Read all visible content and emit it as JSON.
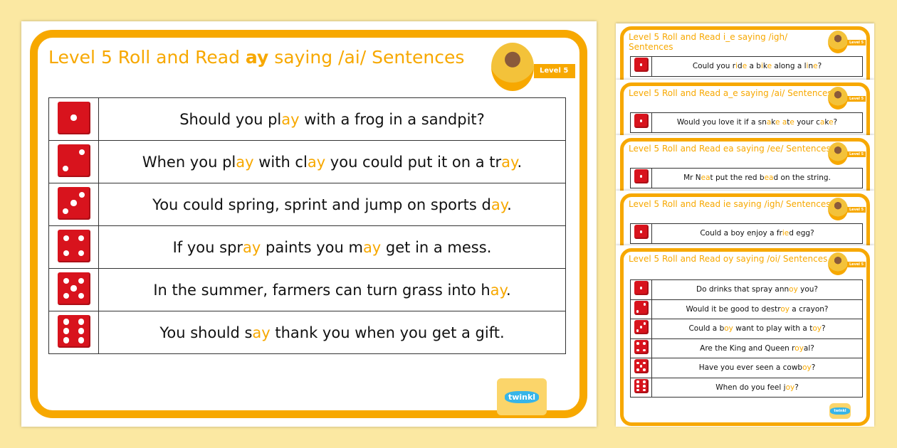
{
  "colors": {
    "accent": "#f7a800",
    "die": "#d8131d",
    "background": "#fbe8a2"
  },
  "main": {
    "title_parts": [
      {
        "t": "Level 5 Roll and Read "
      },
      {
        "t": "ay",
        "b": true
      },
      {
        "t": " saying /ai/ Sentences"
      }
    ],
    "badge": "Level 5",
    "logo": "twinkl",
    "rows": [
      {
        "die": 1,
        "parts": [
          {
            "t": "Should you pl"
          },
          {
            "t": "ay",
            "h": true
          },
          {
            "t": " with a frog in a sandpit?"
          }
        ]
      },
      {
        "die": 2,
        "parts": [
          {
            "t": "When you pl"
          },
          {
            "t": "ay",
            "h": true
          },
          {
            "t": " with cl"
          },
          {
            "t": "ay",
            "h": true
          },
          {
            "t": " you could put it on a tr"
          },
          {
            "t": "ay",
            "h": true
          },
          {
            "t": "."
          }
        ]
      },
      {
        "die": 3,
        "parts": [
          {
            "t": "You could spring, sprint and jump on sports d"
          },
          {
            "t": "ay",
            "h": true
          },
          {
            "t": "."
          }
        ]
      },
      {
        "die": 4,
        "parts": [
          {
            "t": "If you spr"
          },
          {
            "t": "ay",
            "h": true
          },
          {
            "t": " paints you m"
          },
          {
            "t": "ay",
            "h": true
          },
          {
            "t": " get in a mess."
          }
        ]
      },
      {
        "die": 5,
        "parts": [
          {
            "t": "In the summer, farmers can turn grass into h"
          },
          {
            "t": "ay",
            "h": true
          },
          {
            "t": "."
          }
        ]
      },
      {
        "die": 6,
        "parts": [
          {
            "t": "You should s"
          },
          {
            "t": "ay",
            "h": true
          },
          {
            "t": " thank you when you get a gift."
          }
        ]
      }
    ]
  },
  "thumbs": [
    {
      "title_parts": [
        {
          "t": "Level 5 Roll and Read i_e saying /igh/ Sentences"
        }
      ],
      "badge": "Level 5",
      "rows": [
        {
          "die": 1,
          "parts": [
            {
              "t": "Could you r"
            },
            {
              "t": "i",
              "h": true
            },
            {
              "t": "d"
            },
            {
              "t": "e",
              "h": true
            },
            {
              "t": " a b"
            },
            {
              "t": "i",
              "h": true
            },
            {
              "t": "k"
            },
            {
              "t": "e",
              "h": true
            },
            {
              "t": " along a l"
            },
            {
              "t": "i",
              "h": true
            },
            {
              "t": "n"
            },
            {
              "t": "e",
              "h": true
            },
            {
              "t": "?"
            }
          ]
        }
      ]
    },
    {
      "title_parts": [
        {
          "t": "Level 5 Roll and Read a_e saying /ai/ Sentences"
        }
      ],
      "badge": "Level 5",
      "rows": [
        {
          "die": 1,
          "parts": [
            {
              "t": "Would you love it if a sn"
            },
            {
              "t": "a",
              "h": true
            },
            {
              "t": "k"
            },
            {
              "t": "e",
              "h": true
            },
            {
              "t": " "
            },
            {
              "t": "a",
              "h": true
            },
            {
              "t": "t"
            },
            {
              "t": "e",
              "h": true
            },
            {
              "t": " your c"
            },
            {
              "t": "a",
              "h": true
            },
            {
              "t": "k"
            },
            {
              "t": "e",
              "h": true
            },
            {
              "t": "?"
            }
          ]
        }
      ]
    },
    {
      "title_parts": [
        {
          "t": "Level 5 Roll and Read ea saying /ee/ Sentences"
        }
      ],
      "badge": "Level 5",
      "rows": [
        {
          "die": 1,
          "parts": [
            {
              "t": "Mr N"
            },
            {
              "t": "ea",
              "h": true
            },
            {
              "t": "t put the red b"
            },
            {
              "t": "ea",
              "h": true
            },
            {
              "t": "d on the string."
            }
          ]
        }
      ]
    },
    {
      "title_parts": [
        {
          "t": "Level 5 Roll and Read ie saying /igh/ Sentences"
        }
      ],
      "badge": "Level 5",
      "rows": [
        {
          "die": 1,
          "parts": [
            {
              "t": "Could a boy enjoy a fr"
            },
            {
              "t": "ie",
              "h": true
            },
            {
              "t": "d egg?"
            }
          ]
        }
      ]
    },
    {
      "title_parts": [
        {
          "t": "Level 5 Roll and Read oy saying /oi/ Sentences"
        }
      ],
      "badge": "Level 5",
      "logo": "twinkl",
      "rows": [
        {
          "die": 1,
          "parts": [
            {
              "t": "Do drinks that spray ann"
            },
            {
              "t": "oy",
              "h": true
            },
            {
              "t": " you?"
            }
          ]
        },
        {
          "die": 2,
          "parts": [
            {
              "t": "Would it be good to destr"
            },
            {
              "t": "oy",
              "h": true
            },
            {
              "t": " a crayon?"
            }
          ]
        },
        {
          "die": 3,
          "parts": [
            {
              "t": "Could a b"
            },
            {
              "t": "oy",
              "h": true
            },
            {
              "t": " want to play with a t"
            },
            {
              "t": "oy",
              "h": true
            },
            {
              "t": "?"
            }
          ]
        },
        {
          "die": 4,
          "parts": [
            {
              "t": "Are the King and Queen r"
            },
            {
              "t": "oy",
              "h": true
            },
            {
              "t": "al?"
            }
          ]
        },
        {
          "die": 5,
          "parts": [
            {
              "t": "Have you ever seen a cowb"
            },
            {
              "t": "oy",
              "h": true
            },
            {
              "t": "?"
            }
          ]
        },
        {
          "die": 6,
          "parts": [
            {
              "t": "When do you feel j"
            },
            {
              "t": "oy",
              "h": true
            },
            {
              "t": "?"
            }
          ]
        }
      ]
    }
  ]
}
